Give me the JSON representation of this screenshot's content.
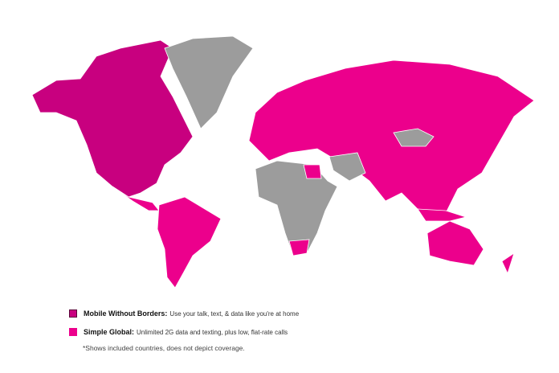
{
  "colors": {
    "mobile_without_borders": "#c8007f",
    "simple_global": "#ec008c",
    "not_included": "#9c9c9c",
    "border": "#ffffff"
  },
  "legend": [
    {
      "title": "Mobile Without Borders:",
      "desc": "Use your talk, text, & data like you're at home"
    },
    {
      "title": "Simple Global:",
      "desc": "Unlimited 2G data and texting, plus low, flat-rate calls"
    }
  ],
  "note": "*Shows included countries, does not depict coverage."
}
